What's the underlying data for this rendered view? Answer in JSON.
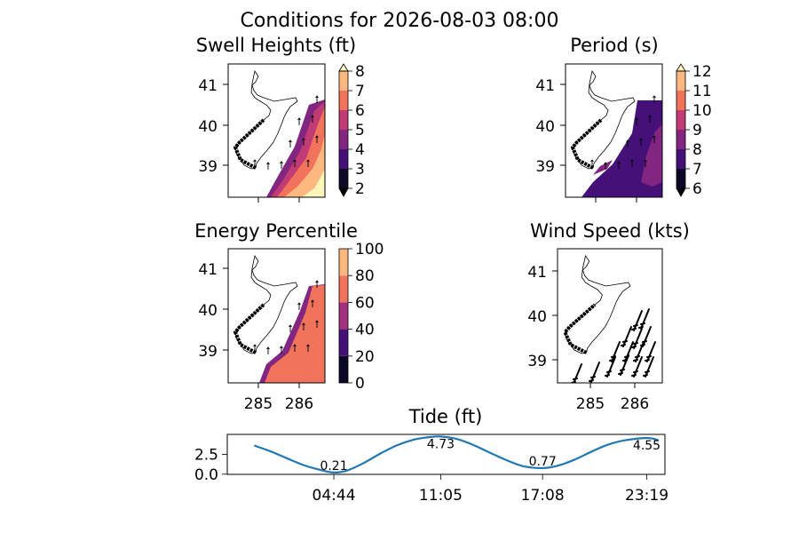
{
  "suptitle": "Conditions for 2026-08-03 08:00",
  "palette": {
    "magma": [
      "#0c0826",
      "#451077",
      "#822681",
      "#c13b74",
      "#f2735c",
      "#fcb87e",
      "#fcf6bb"
    ],
    "coast": "#000000",
    "line": "#1f77b4"
  },
  "panels": {
    "swell": {
      "title": "Swell Heights (ft)",
      "yticks": [
        "41",
        "40",
        "39"
      ],
      "cbar_ticks": [
        "2",
        "3",
        "4",
        "5",
        "6",
        "7",
        "8"
      ]
    },
    "period": {
      "title": "Period (s)",
      "yticks": [
        "41",
        "40",
        "39"
      ],
      "cbar_ticks": [
        "6",
        "7",
        "8",
        "9",
        "10",
        "11",
        "12"
      ]
    },
    "energy": {
      "title": "Energy Percentile",
      "yticks": [
        "41",
        "40",
        "39"
      ],
      "xticks": [
        "285",
        "286"
      ],
      "cbar_ticks": [
        "0",
        "20",
        "40",
        "60",
        "80",
        "100"
      ]
    },
    "wind": {
      "title": "Wind Speed (kts)",
      "yticks": [
        "41",
        "40",
        "39"
      ],
      "xticks": [
        "285",
        "286"
      ]
    }
  },
  "chart_data": [
    {
      "type": "heatmap",
      "title": "Swell Heights (ft)",
      "xlim": [
        284.3,
        286.6
      ],
      "ylim": [
        38.2,
        41.5
      ],
      "colorbar": {
        "min": 2,
        "max": 8,
        "ticks": [
          2,
          3,
          4,
          5,
          6,
          7,
          8
        ],
        "extend": "both"
      },
      "bands_offshore_low_to_high": [
        4,
        5,
        6,
        7,
        8
      ]
    },
    {
      "type": "heatmap",
      "title": "Period (s)",
      "xlim": [
        284.3,
        286.6
      ],
      "ylim": [
        38.2,
        41.5
      ],
      "colorbar": {
        "min": 6,
        "max": 12,
        "ticks": [
          6,
          7,
          8,
          9,
          10,
          11,
          12
        ],
        "extend": "both"
      },
      "dominant_value": 7.5,
      "secondary_value": 8.5
    },
    {
      "type": "heatmap",
      "title": "Energy Percentile",
      "xlim": [
        284.3,
        286.6
      ],
      "ylim": [
        38.2,
        41.5
      ],
      "colorbar": {
        "min": 0,
        "max": 100,
        "ticks": [
          0,
          20,
          40,
          60,
          80,
          100
        ]
      },
      "dominant_value": 70
    },
    {
      "type": "scatter",
      "title": "Wind Speed (kts)",
      "xlim": [
        284.3,
        286.6
      ],
      "ylim": [
        38.5,
        41.5
      ],
      "note": "wind barbs offshore"
    },
    {
      "type": "line",
      "title": "Tide (ft)",
      "x_hours": [
        0,
        1,
        2,
        3,
        4,
        4.73,
        5.5,
        6.5,
        7.5,
        8.5,
        9.5,
        10.5,
        11.08,
        12,
        13,
        14,
        15,
        16,
        17.13,
        18,
        19,
        20,
        21,
        22,
        23.32,
        24
      ],
      "y": [
        3.6,
        2.85,
        1.95,
        1.1,
        0.5,
        0.21,
        0.45,
        1.4,
        2.6,
        3.65,
        4.35,
        4.68,
        4.73,
        4.45,
        3.7,
        2.7,
        1.75,
        1.0,
        0.77,
        1.05,
        1.8,
        2.8,
        3.7,
        4.25,
        4.55,
        4.3
      ],
      "xticks": [
        "04:44",
        "11:05",
        "17:08",
        "23:19"
      ],
      "xtick_hours": [
        4.73,
        11.08,
        17.13,
        23.32
      ],
      "yticks": [
        "0.0",
        "2.5"
      ],
      "ylim": [
        0,
        5
      ],
      "annotations": [
        {
          "hour": 4.73,
          "value": 0.21,
          "label": "0.21"
        },
        {
          "hour": 11.08,
          "value": 4.73,
          "label": "4.73"
        },
        {
          "hour": 17.13,
          "value": 0.77,
          "label": "0.77"
        },
        {
          "hour": 23.32,
          "value": 4.55,
          "label": "4.55"
        }
      ]
    }
  ]
}
